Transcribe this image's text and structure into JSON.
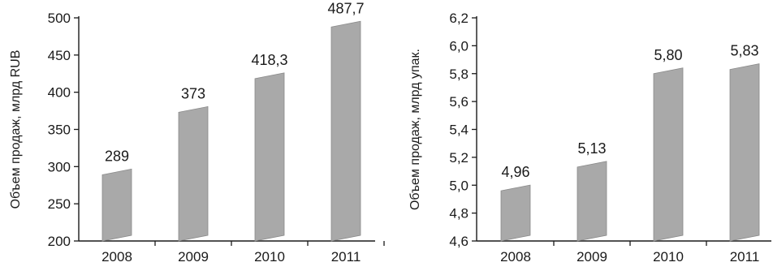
{
  "chart_data": [
    {
      "type": "bar",
      "categories": [
        "2008",
        "2009",
        "2010",
        "2011"
      ],
      "values": [
        289,
        373,
        418.3,
        487.7
      ],
      "data_labels": [
        "289",
        "373",
        "418,3",
        "487,7"
      ],
      "ylabel": "Объем продаж, млрд RUB",
      "ylim": [
        200,
        500
      ],
      "y_ticks": [
        200,
        250,
        300,
        350,
        400,
        450,
        500
      ],
      "y_tick_labels": [
        "200",
        "250",
        "300",
        "350",
        "400",
        "450",
        "500"
      ],
      "grid": false,
      "bar_color": "#a9a9a9"
    },
    {
      "type": "bar",
      "categories": [
        "2008",
        "2009",
        "2010",
        "2011"
      ],
      "values": [
        4.96,
        5.13,
        5.8,
        5.83
      ],
      "data_labels": [
        "4,96",
        "5,13",
        "5,80",
        "5,83"
      ],
      "ylabel": "Объем продаж, млрд упак.",
      "ylim": [
        4.6,
        6.2
      ],
      "y_ticks": [
        4.6,
        4.8,
        5.0,
        5.2,
        5.4,
        5.6,
        5.8,
        6.0,
        6.2
      ],
      "y_tick_labels": [
        "4,6",
        "4,8",
        "5,0",
        "5,2",
        "5,4",
        "5,6",
        "5,8",
        "6,0",
        "6,2"
      ],
      "grid": false,
      "bar_color": "#a9a9a9"
    }
  ]
}
